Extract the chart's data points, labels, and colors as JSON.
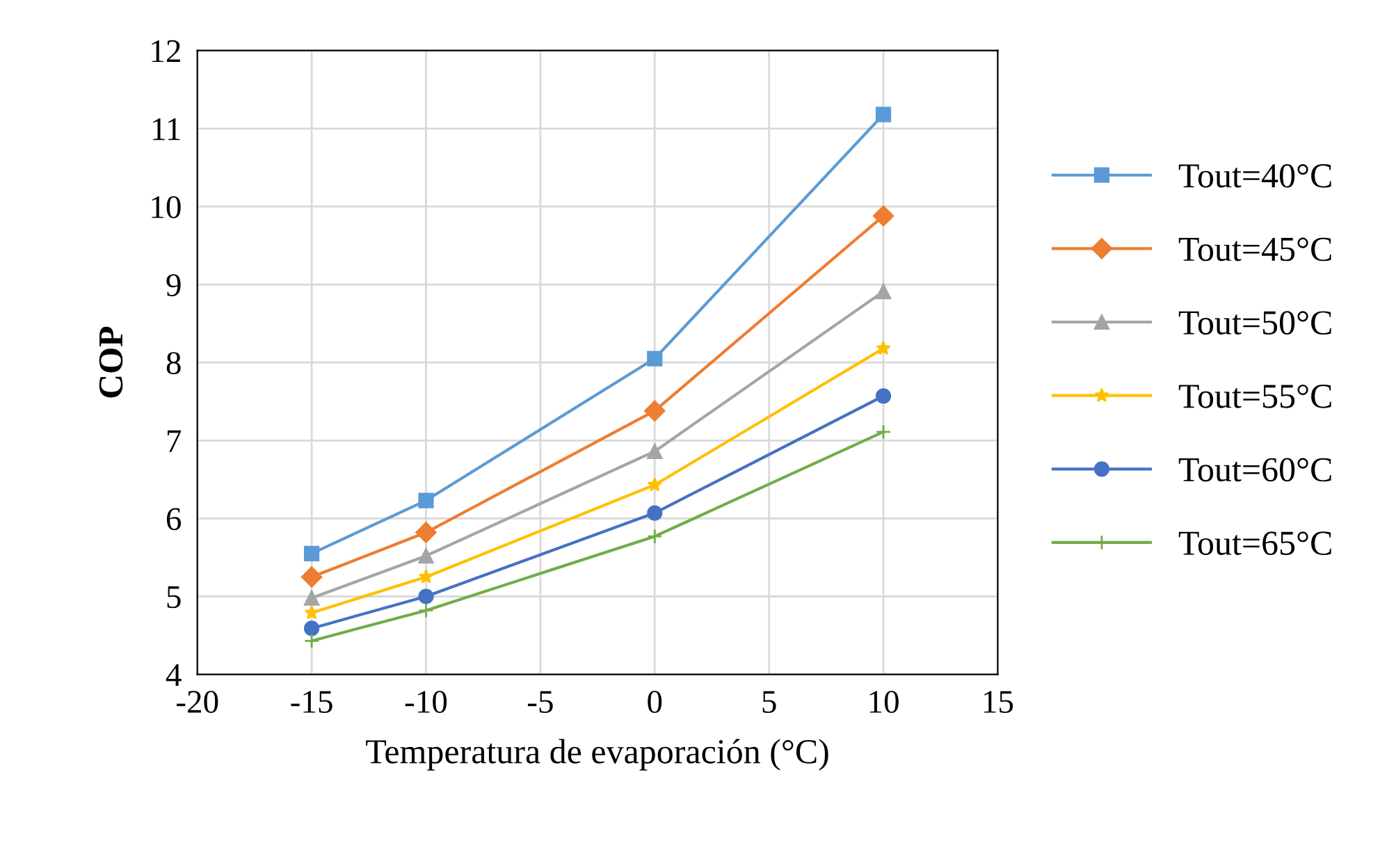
{
  "chart_data": {
    "type": "line",
    "xlabel": "Temperatura de evaporación (°C)",
    "ylabel": "COP",
    "x": [
      -15,
      -10,
      0,
      10
    ],
    "series": [
      {
        "name": "Tout=40°C",
        "color": "#5b9bd5",
        "marker": "square",
        "values": [
          5.55,
          6.23,
          8.05,
          11.18
        ]
      },
      {
        "name": "Tout=45°C",
        "color": "#ed7d31",
        "marker": "diamond",
        "values": [
          5.25,
          5.82,
          7.38,
          9.88
        ]
      },
      {
        "name": "Tout=50°C",
        "color": "#a5a5a5",
        "marker": "triangle",
        "values": [
          4.98,
          5.52,
          6.86,
          8.91
        ]
      },
      {
        "name": "Tout=55°C",
        "color": "#ffc000",
        "marker": "star",
        "values": [
          4.79,
          5.25,
          6.43,
          8.18
        ]
      },
      {
        "name": "Tout=60°C",
        "color": "#4472c4",
        "marker": "circle",
        "values": [
          4.59,
          5.0,
          6.07,
          7.57
        ]
      },
      {
        "name": "Tout=65°C",
        "color": "#70ad47",
        "marker": "cross",
        "values": [
          4.43,
          4.82,
          5.77,
          7.11
        ]
      }
    ],
    "xlim": [
      -20,
      15
    ],
    "xticks": [
      -20,
      -15,
      -10,
      -5,
      0,
      5,
      10,
      15
    ],
    "ylim": [
      4,
      12
    ],
    "yticks": [
      4,
      5,
      6,
      7,
      8,
      9,
      10,
      11,
      12
    ],
    "grid": true,
    "legend": "right",
    "line_style": "solid"
  }
}
